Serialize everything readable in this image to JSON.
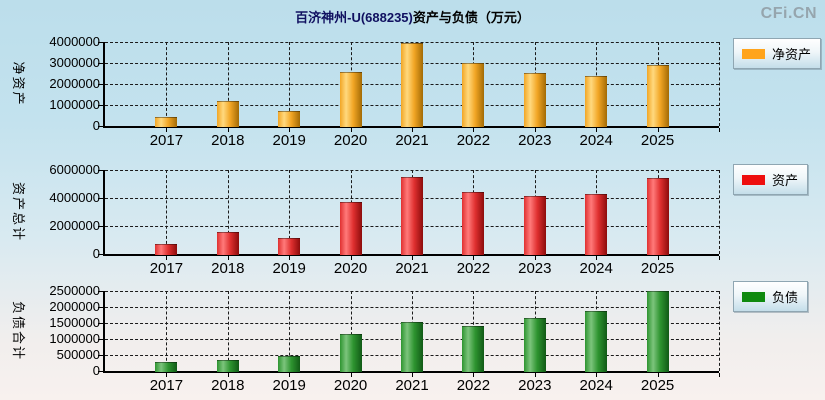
{
  "header": {
    "title_stock": "百济神州-U(688235)",
    "title_suffix": "资产与负债（万元）",
    "logo": "CFi.CN"
  },
  "colors": {
    "background_top": "#BCDEEB",
    "background_bottom": "#F8F1EE",
    "grid_line": "#1A1A1A",
    "axis_line": "#000000",
    "title_stock": "#101060",
    "logo_gray": "#96A5AD"
  },
  "chart_data": [
    {
      "type": "bar",
      "ylabel": "净资产",
      "legend": "净资产",
      "legend_color": "#FFA41C",
      "bar_colors": {
        "light": "#FFD97E",
        "mid": "#F2A625",
        "dark": "#A26A04"
      },
      "categories": [
        "2017",
        "2018",
        "2019",
        "2020",
        "2021",
        "2022",
        "2023",
        "2024",
        "2025"
      ],
      "values": [
        450000,
        1200000,
        700000,
        2550000,
        3950000,
        3000000,
        2500000,
        2380000,
        2900000
      ],
      "ylim": [
        0,
        4000000
      ],
      "yticks": [
        0,
        1000000,
        2000000,
        3000000,
        4000000
      ],
      "grid": true,
      "legend_position": "right"
    },
    {
      "type": "bar",
      "ylabel": "资产总计",
      "legend": "资产",
      "legend_color": "#EE0E0E",
      "bar_colors": {
        "light": "#FF7A7A",
        "mid": "#E03030",
        "dark": "#8C0C0C"
      },
      "categories": [
        "2017",
        "2018",
        "2019",
        "2020",
        "2021",
        "2022",
        "2023",
        "2024",
        "2025"
      ],
      "values": [
        720000,
        1600000,
        1170000,
        3680000,
        5500000,
        4450000,
        4150000,
        4320000,
        5450000
      ],
      "ylim": [
        0,
        6000000
      ],
      "yticks": [
        0,
        2000000,
        4000000,
        6000000
      ],
      "grid": true,
      "legend_position": "right"
    },
    {
      "type": "bar",
      "ylabel": "负债合计",
      "legend": "负债",
      "legend_color": "#0F8A0F",
      "bar_colors": {
        "light": "#7CC47C",
        "mid": "#2E9430",
        "dark": "#115A16"
      },
      "categories": [
        "2017",
        "2018",
        "2019",
        "2020",
        "2021",
        "2022",
        "2023",
        "2024",
        "2025"
      ],
      "values": [
        280000,
        345000,
        470000,
        1150000,
        1540000,
        1400000,
        1650000,
        1880000,
        2500000
      ],
      "ylim": [
        0,
        2500000
      ],
      "yticks": [
        0,
        500000,
        1000000,
        1500000,
        2000000,
        2500000
      ],
      "grid": true,
      "legend_position": "right"
    }
  ]
}
